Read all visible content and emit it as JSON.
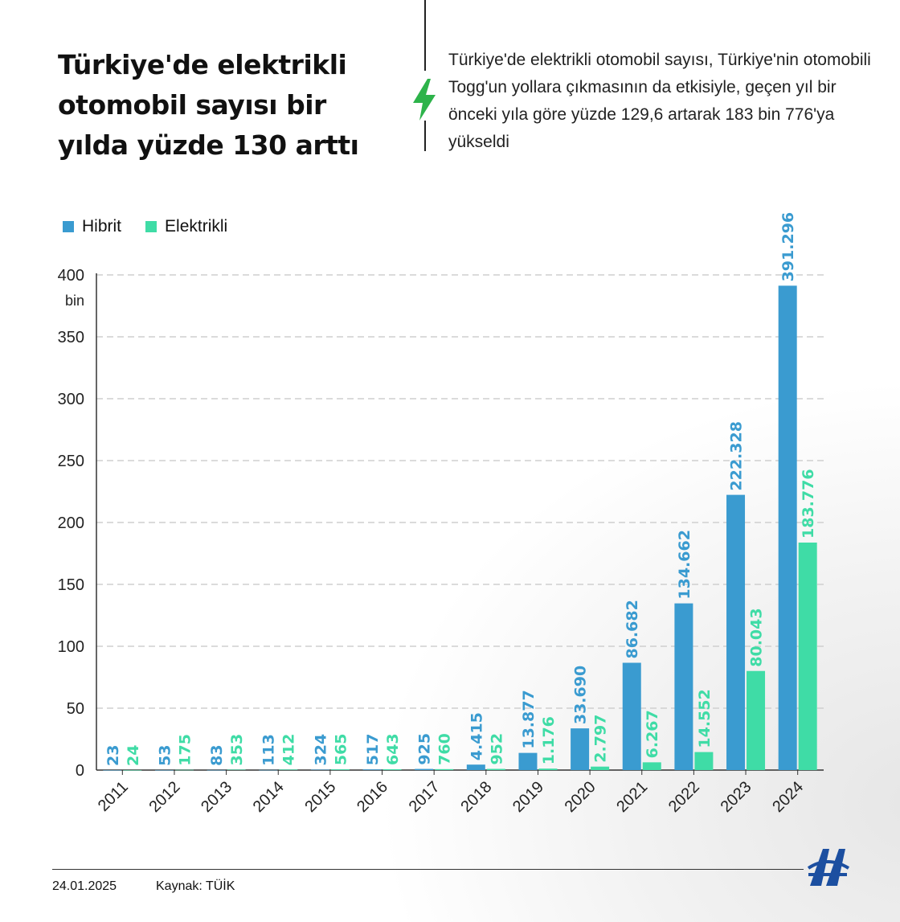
{
  "title": "Türkiye'de elektrikli otomobil sayısı bir yılda yüzde 130 arttı",
  "description": "Türkiye'de elektrikli otomobil sayısı, Türkiye'nin otomobili Togg'un yollara çıkmasının da etkisiyle, geçen yıl bir önceki yıla göre yüzde 129,6 artarak 183 bin 776'ya yükseldi",
  "footer": {
    "date": "24.01.2025",
    "source": "Kaynak: TÜİK",
    "logo": "AA"
  },
  "colors": {
    "hibrit": "#3a9bd0",
    "elektrikli": "#3fdca6",
    "accent": "#2db34a"
  },
  "chart_data": {
    "type": "bar",
    "title": "Türkiye'de elektrikli otomobil sayısı bir yılda yüzde 130 arttı",
    "ylabel": "bin",
    "ylim": [
      0,
      400
    ],
    "yticks": [
      0,
      50,
      100,
      150,
      200,
      250,
      300,
      350,
      400
    ],
    "yunit": "bin",
    "grid": true,
    "legend_position": "top-left",
    "categories": [
      "2011",
      "2012",
      "2013",
      "2014",
      "2015",
      "2016",
      "2017",
      "2018",
      "2019",
      "2020",
      "2021",
      "2022",
      "2023",
      "2024"
    ],
    "series": [
      {
        "name": "Hibrit",
        "values": [
          0.023,
          0.053,
          0.083,
          0.113,
          0.324,
          0.517,
          0.925,
          4.415,
          13.877,
          33.69,
          86.682,
          134.662,
          222.328,
          391.296
        ],
        "labels": [
          "23",
          "53",
          "83",
          "113",
          "324",
          "517",
          "925",
          "4.415",
          "13.877",
          "33.690",
          "86.682",
          "134.662",
          "222.328",
          "391.296"
        ]
      },
      {
        "name": "Elektrikli",
        "values": [
          0.024,
          0.175,
          0.353,
          0.412,
          0.565,
          0.643,
          0.76,
          0.952,
          1.176,
          2.797,
          6.267,
          14.552,
          80.043,
          183.776
        ],
        "labels": [
          "24",
          "175",
          "353",
          "412",
          "565",
          "643",
          "760",
          "952",
          "1.176",
          "2.797",
          "6.267",
          "14.552",
          "80.043",
          "183.776"
        ]
      }
    ]
  }
}
